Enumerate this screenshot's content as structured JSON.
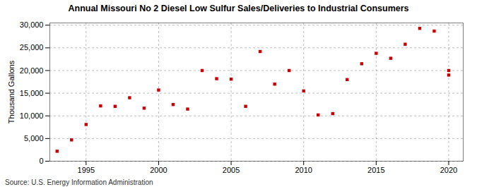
{
  "chart_data": {
    "type": "scatter",
    "title": "Annual Missouri No 2 Diesel Low Sulfur Sales/Deliveries to Industrial Consumers",
    "ylabel": "Thousand Gallons",
    "caption": "Source: U.S. Energy Information Administration",
    "x": [
      1993,
      1994,
      1995,
      1996,
      1997,
      1998,
      1999,
      2000,
      2001,
      2002,
      2003,
      2004,
      2005,
      2006,
      2007,
      2008,
      2009,
      2010,
      2011,
      2012,
      2013,
      2014,
      2015,
      2016,
      2017,
      2018,
      2019,
      2020,
      2020
    ],
    "values": [
      2200,
      4700,
      8100,
      12200,
      12100,
      14000,
      11700,
      15700,
      12500,
      11500,
      20000,
      18200,
      18100,
      12100,
      24200,
      17000,
      20000,
      15500,
      10200,
      10500,
      18000,
      21500,
      23800,
      22700,
      25800,
      29300,
      28700,
      19000,
      20000
    ],
    "color": "#cc0000",
    "marker": "square",
    "xlim": [
      1992.5,
      2021
    ],
    "xticks": [
      1995,
      2000,
      2005,
      2010,
      2015,
      2020
    ],
    "ylim": [
      0,
      30500
    ],
    "yticks": [
      0,
      {
        "value": 5000,
        "label": "5,000"
      },
      {
        "value": 10000,
        "label": "10,000"
      },
      {
        "value": 15000,
        "label": "15,000"
      },
      {
        "value": 20000,
        "label": "20,000"
      },
      {
        "value": 25000,
        "label": "25,000"
      },
      {
        "value": 30000,
        "label": "30,000"
      }
    ],
    "grid": true
  }
}
